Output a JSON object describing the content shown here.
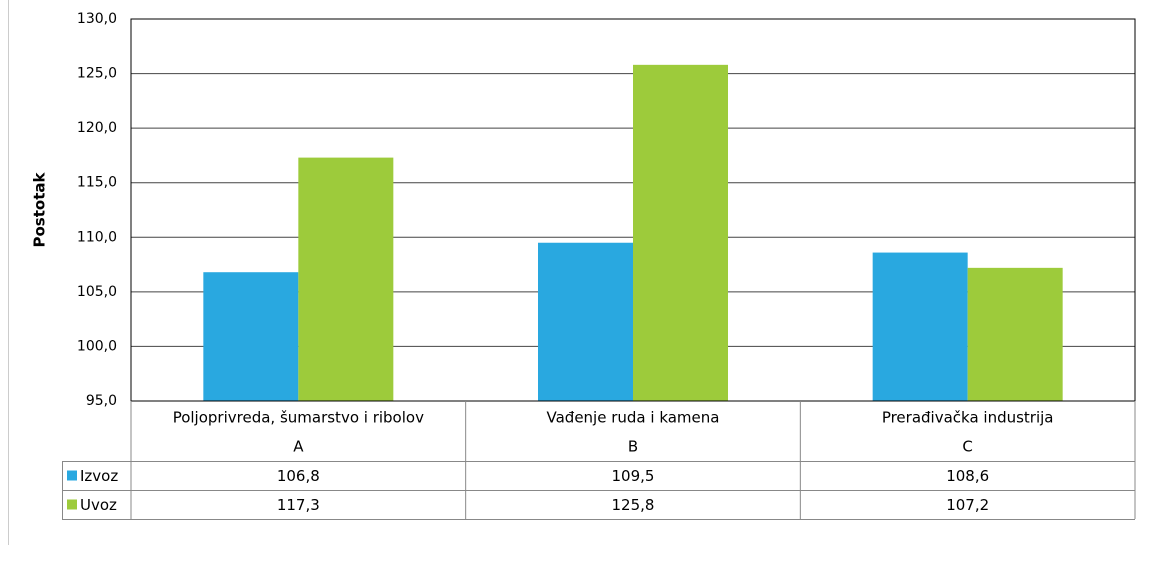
{
  "chart_data": {
    "type": "bar",
    "y_label": "Postotak",
    "categories": [
      "Poljoprivreda, šumarstvo i ribolov",
      "Vađenje ruda i kamena",
      "Prerađivačka industrija"
    ],
    "category_codes": [
      "A",
      "B",
      "C"
    ],
    "series": [
      {
        "name": "Izvoz",
        "color": "#29a8e0",
        "values": [
          106.8,
          109.5,
          108.6
        ],
        "value_labels": [
          "106,8",
          "109,5",
          "108,6"
        ]
      },
      {
        "name": "Uvoz",
        "color": "#9dcb3b",
        "values": [
          117.3,
          125.8,
          107.2
        ],
        "value_labels": [
          "117,3",
          "125,8",
          "107,2"
        ]
      }
    ],
    "ylim": [
      95,
      130
    ],
    "yticks": [
      {
        "value": 95,
        "label": "95,0"
      },
      {
        "value": 100,
        "label": "100,0"
      },
      {
        "value": 105,
        "label": "105,0"
      },
      {
        "value": 110,
        "label": "110,0"
      },
      {
        "value": 115,
        "label": "115,0"
      },
      {
        "value": 120,
        "label": "120,0"
      },
      {
        "value": 125,
        "label": "125,0"
      },
      {
        "value": 130,
        "label": "130,0"
      }
    ],
    "grid": true
  }
}
